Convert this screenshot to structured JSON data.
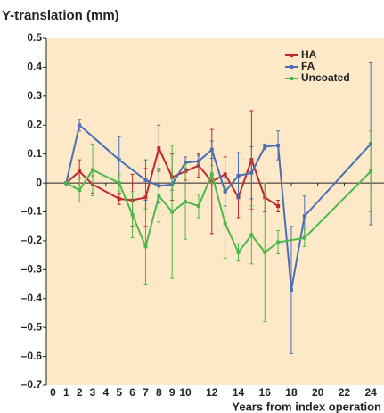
{
  "chart_data": {
    "type": "line",
    "title": "Y-translation (mm)",
    "xlabel": "Years from index operation",
    "xlim": [
      -0.5,
      25
    ],
    "ylim": [
      -0.7,
      0.5
    ],
    "xticks": [
      0,
      1,
      2,
      3,
      4,
      5,
      6,
      7,
      8,
      9,
      10,
      12,
      14,
      16,
      18,
      20,
      22,
      24
    ],
    "yticks": [
      0.5,
      0.4,
      0.3,
      0.2,
      0.1,
      0,
      {
        "value": -0.1,
        "label": "–0.1"
      },
      {
        "value": -0.2,
        "label": "–0.2"
      },
      {
        "value": -0.3,
        "label": "–0.3"
      },
      {
        "value": -0.4,
        "label": "–0.4"
      },
      {
        "value": -0.5,
        "label": "–0.5"
      },
      {
        "value": -0.6,
        "label": "–0.6"
      },
      {
        "value": -0.7,
        "label": "–0.7"
      }
    ],
    "legend": "upper right",
    "series": [
      {
        "name": "HA",
        "color": "#c0282c",
        "x": [
          1,
          2,
          3,
          5,
          6,
          7,
          8,
          9,
          10,
          11,
          12,
          13,
          14,
          15,
          16,
          17
        ],
        "values": [
          0,
          0.04,
          -0.005,
          -0.055,
          -0.06,
          -0.05,
          0.12,
          0.02,
          0.04,
          0.06,
          0.005,
          0.03,
          -0.05,
          0.08,
          -0.05,
          -0.08
        ],
        "errors": [
          0,
          0.04,
          0.03,
          0.02,
          0.09,
          0.1,
          0.08,
          0.08,
          0.03,
          0.04,
          0.18,
          0.06,
          0.07,
          0.17,
          0.05,
          0.02
        ]
      },
      {
        "name": "FA",
        "color": "#4a6fb5",
        "x": [
          1,
          2,
          5,
          7,
          8,
          9,
          10,
          11,
          12,
          13,
          14,
          15,
          16,
          17,
          18,
          19,
          24
        ],
        "values": [
          0,
          0.2,
          0.08,
          0.01,
          -0.01,
          -0.005,
          0.07,
          0.075,
          0.115,
          -0.03,
          0.025,
          0.035,
          0.125,
          0.13,
          -0.37,
          -0.115,
          0.135
        ],
        "errors": [
          0,
          0.02,
          0.08,
          0.07,
          0.06,
          0.02,
          0.02,
          0.02,
          0.03,
          0.05,
          0.08,
          0.09,
          0.01,
          0.05,
          0.22,
          0.07,
          0.28
        ]
      },
      {
        "name": "Uncoated",
        "color": "#4cb84a",
        "x": [
          1,
          2,
          3,
          5,
          6,
          7,
          8,
          9,
          10,
          11,
          12,
          13,
          14,
          15,
          16,
          17,
          19,
          24
        ],
        "values": [
          0,
          -0.025,
          0.045,
          0,
          -0.11,
          -0.22,
          -0.045,
          -0.1,
          -0.065,
          -0.08,
          0.03,
          -0.14,
          -0.24,
          -0.18,
          -0.24,
          -0.205,
          -0.19,
          0.04
        ],
        "errors": [
          0,
          0.04,
          0.09,
          0.03,
          0.08,
          0.13,
          0.09,
          0.23,
          0.13,
          0.04,
          0.03,
          0.12,
          0.03,
          0.1,
          0.24,
          0.04,
          0.03,
          0.14
        ]
      }
    ]
  }
}
